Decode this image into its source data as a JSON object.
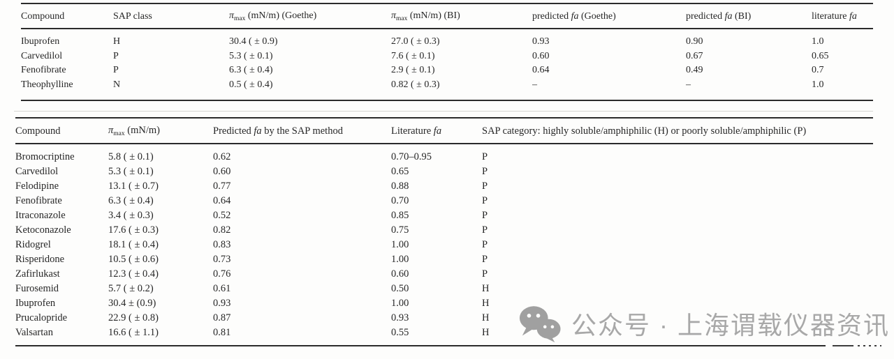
{
  "page": {
    "background": "#fdfdfc",
    "rule_color": "#2b2b2b",
    "text_color": "#262626"
  },
  "table1": {
    "headers": [
      [
        {
          "t": "Compound"
        }
      ],
      [
        {
          "t": "SAP class"
        }
      ],
      [
        {
          "t": "π",
          "s": "i"
        },
        {
          "t": "max",
          "s": "sub"
        },
        {
          "t": " (mN/m) (Goethe)"
        }
      ],
      [
        {
          "t": "π",
          "s": "i"
        },
        {
          "t": "max",
          "s": "sub"
        },
        {
          "t": " (mN/m) (BI)"
        }
      ],
      [
        {
          "t": "predicted "
        },
        {
          "t": "fa",
          "s": "i"
        },
        {
          "t": " (Goethe)"
        }
      ],
      [
        {
          "t": "predicted "
        },
        {
          "t": "fa",
          "s": "i"
        },
        {
          "t": " (BI)"
        }
      ],
      [
        {
          "t": "literature "
        },
        {
          "t": "fa",
          "s": "i"
        }
      ]
    ],
    "rows": [
      [
        "Ibuprofen",
        "H",
        "30.4 ( ± 0.9)",
        "27.0 ( ± 0.3)",
        "0.93",
        "0.90",
        "1.0"
      ],
      [
        "Carvedilol",
        "P",
        "5.3 ( ± 0.1)",
        "7.6 ( ± 0.1)",
        "0.60",
        "0.67",
        "0.65"
      ],
      [
        "Fenofibrate",
        "P",
        "6.3 ( ± 0.4)",
        "2.9 ( ± 0.1)",
        "0.64",
        "0.49",
        "0.7"
      ],
      [
        "Theophylline",
        "N",
        "0.5 ( ± 0.4)",
        "0.82 ( ± 0.3)",
        "–",
        "–",
        "1.0"
      ]
    ]
  },
  "table2": {
    "headers": [
      [
        {
          "t": "Compound"
        }
      ],
      [
        {
          "t": "π",
          "s": "i"
        },
        {
          "t": "max",
          "s": "sub"
        },
        {
          "t": " (mN/m)"
        }
      ],
      [
        {
          "t": "Predicted "
        },
        {
          "t": "fa",
          "s": "i"
        },
        {
          "t": " by the SAP method"
        }
      ],
      [
        {
          "t": "Literature "
        },
        {
          "t": "fa",
          "s": "i"
        }
      ],
      [
        {
          "t": "SAP category: highly soluble/amphiphilic (H) or poorly soluble/amphiphilic (P)"
        }
      ]
    ],
    "rows": [
      [
        "Bromocriptine",
        "5.8 ( ± 0.1)",
        "0.62",
        "0.70–0.95",
        "P"
      ],
      [
        "Carvedilol",
        "5.3 ( ± 0.1)",
        "0.60",
        "0.65",
        "P"
      ],
      [
        "Felodipine",
        "13.1 ( ± 0.7)",
        "0.77",
        "0.88",
        "P"
      ],
      [
        "Fenofibrate",
        "6.3 ( ± 0.4)",
        "0.64",
        "0.70",
        "P"
      ],
      [
        "Itraconazole",
        "3.4 ( ± 0.3)",
        "0.52",
        "0.85",
        "P"
      ],
      [
        "Ketoconazole",
        "17.6 ( ± 0.3)",
        "0.82",
        "0.75",
        "P"
      ],
      [
        "Ridogrel",
        "18.1 ( ± 0.4)",
        "0.83",
        "1.00",
        "P"
      ],
      [
        "Risperidone",
        "10.5 ( ± 0.6)",
        "0.73",
        "1.00",
        "P"
      ],
      [
        "Zafirlukast",
        "12.3 ( ± 0.4)",
        "0.76",
        "0.60",
        "P"
      ],
      [
        "Furosemid",
        "5.7 ( ± 0.2)",
        "0.61",
        "0.50",
        "H"
      ],
      [
        "Ibuprofen",
        "30.4 ± (0.9)",
        "0.93",
        "1.00",
        "H"
      ],
      [
        "Prucalopride",
        "22.9 ( ± 0.8)",
        "0.87",
        "0.93",
        "H"
      ],
      [
        "Valsartan",
        "16.6 ( ± 1.1)",
        "0.81",
        "0.55",
        "H"
      ]
    ]
  },
  "watermark": {
    "icon": "wechat-icon",
    "label": "公众号 · 上海谓载仪器资讯",
    "color": "#a8a8a8"
  }
}
